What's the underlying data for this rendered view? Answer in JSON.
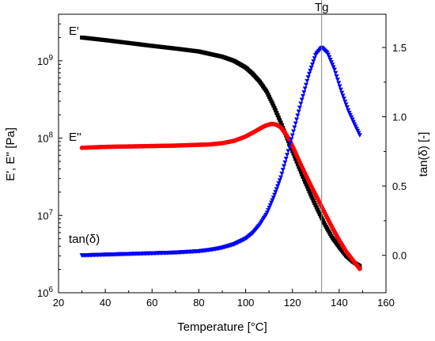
{
  "chart_data": {
    "type": "scatter",
    "title": "",
    "xlabel": "Temperature [°C]",
    "ylabel_left": "E', E'' [Pa]",
    "ylabel_right": "tan(δ) [-]",
    "x_ticks": [
      20,
      40,
      60,
      80,
      100,
      120,
      140,
      160
    ],
    "xlim": [
      20,
      160
    ],
    "y_left_scale": "log",
    "y_left_lim": [
      1000000,
      4000000000
    ],
    "y_left_ticks": [
      {
        "value": 1000000,
        "base": "10",
        "exp": "6"
      },
      {
        "value": 10000000,
        "base": "10",
        "exp": "7"
      },
      {
        "value": 100000000,
        "base": "10",
        "exp": "8"
      },
      {
        "value": 1000000000,
        "base": "10",
        "exp": "9"
      }
    ],
    "y_right_lim": [
      -0.27,
      1.74
    ],
    "y_right_ticks": [
      "0.0",
      "0.5",
      "1.0",
      "1.5"
    ],
    "annotation": {
      "label": "Tg",
      "x": 132.5
    },
    "grid": false,
    "series": [
      {
        "name": "E'",
        "axis": "left",
        "color": "#000000",
        "marker": "square",
        "x": [
          30,
          40,
          50,
          60,
          70,
          80,
          90,
          95,
          100,
          103,
          106,
          109,
          112,
          115,
          118,
          120,
          122,
          125,
          128,
          131,
          134,
          137,
          140,
          143,
          146,
          149
        ],
        "y": [
          2000000000,
          1850000000,
          1700000000,
          1560000000,
          1440000000,
          1320000000,
          1130000000,
          1000000000,
          820000000,
          680000000,
          540000000,
          400000000,
          260000000,
          160000000,
          95000000,
          68000000,
          48000000,
          29000000,
          18000000,
          11500000,
          7500000,
          5200000,
          3900000,
          3000000,
          2500000,
          2200000
        ]
      },
      {
        "name": "E''",
        "axis": "left",
        "color": "#ff0000",
        "marker": "circle",
        "x": [
          30,
          40,
          50,
          60,
          70,
          80,
          85,
          90,
          95,
          100,
          104,
          108,
          111,
          113,
          115,
          117,
          119,
          121,
          123,
          125,
          128,
          131,
          134,
          137,
          140,
          143,
          146,
          149
        ],
        "y": [
          75000000,
          77000000,
          78000000,
          79000000,
          80000000,
          82000000,
          83000000,
          86000000,
          92000000,
          105000000,
          122000000,
          143000000,
          153000000,
          150000000,
          138000000,
          115000000,
          92000000,
          68000000,
          50000000,
          37000000,
          24000000,
          16000000,
          10500000,
          7000000,
          4800000,
          3400000,
          2600000,
          2000000
        ]
      },
      {
        "name": "tan(δ)",
        "axis": "right",
        "color": "#0000ff",
        "marker": "triangle-down",
        "x": [
          30,
          40,
          50,
          60,
          70,
          80,
          85,
          90,
          95,
          100,
          103,
          106,
          109,
          112,
          115,
          118,
          121,
          124,
          127,
          130,
          132.5,
          135,
          138,
          141,
          144,
          147,
          149
        ],
        "y": [
          0.0,
          0.005,
          0.01,
          0.015,
          0.02,
          0.03,
          0.04,
          0.055,
          0.08,
          0.12,
          0.16,
          0.22,
          0.3,
          0.42,
          0.56,
          0.74,
          0.93,
          1.12,
          1.3,
          1.45,
          1.5,
          1.46,
          1.34,
          1.18,
          1.04,
          0.93,
          0.86
        ]
      }
    ]
  }
}
